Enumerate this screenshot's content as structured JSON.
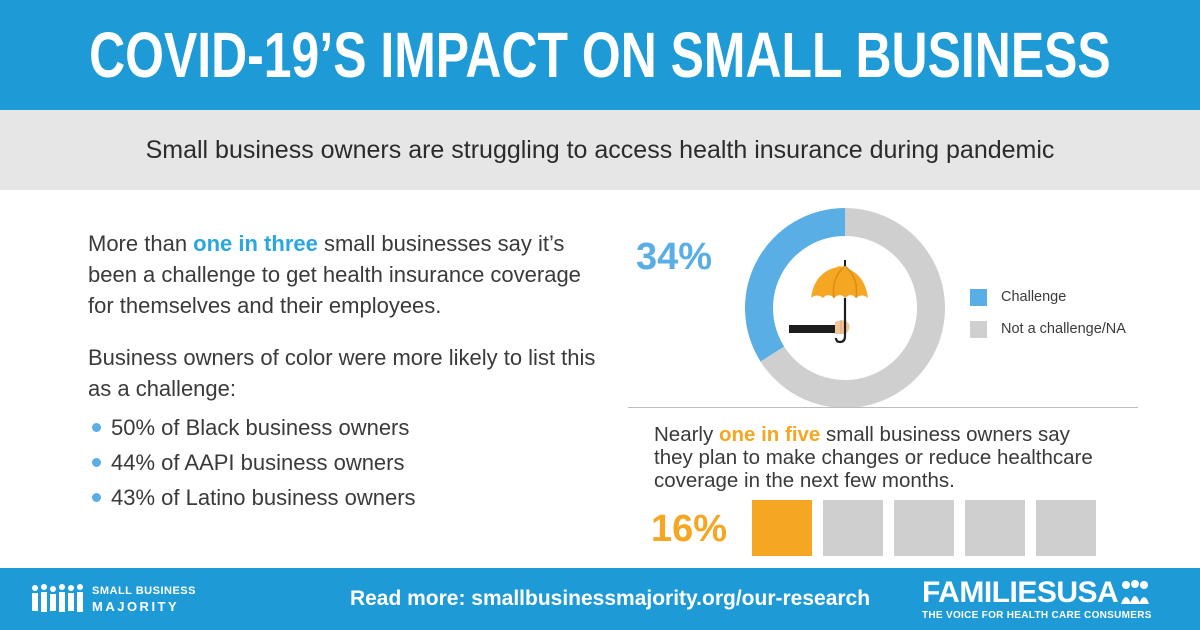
{
  "header": {
    "title": "COVID-19’S IMPACT ON SMALL BUSINESS"
  },
  "subheader": {
    "text": "Small business owners are struggling to access health insurance during pandemic"
  },
  "left": {
    "para1": {
      "pre": "More than ",
      "highlight": "one in three",
      "post": " small businesses say it’s been a challenge to get health insurance coverage for themselves and their employees."
    },
    "para2": "Business owners of color were more likely to list this as a challenge:",
    "bullets": [
      "50% of Black business owners",
      "44% of AAPI business owners",
      "43% of Latino business owners"
    ]
  },
  "right": {
    "para": {
      "pre": "Nearly ",
      "highlight": "one in five",
      "post": " small business owners say they plan to make changes or reduce healthcare coverage in the next few months."
    }
  },
  "colors": {
    "brand_blue": "#1e9bd7",
    "challenge": "#5aaee6",
    "not_challenge": "#cfcfcf",
    "highlight_orange": "#f5a623",
    "icon": "umbrella-hand-icon"
  },
  "chart_data": [
    {
      "type": "pie",
      "style": "donut",
      "label": "34%",
      "series": [
        {
          "name": "Challenge",
          "value": 34,
          "color": "#5aaee6"
        },
        {
          "name": "Not a challenge/NA",
          "value": 66,
          "color": "#cfcfcf"
        }
      ],
      "legend": "right"
    },
    {
      "type": "bar",
      "style": "unit-blocks",
      "label": "16%",
      "total_blocks": 5,
      "highlighted_blocks": 1,
      "value_percent": 16,
      "highlight_color": "#f5a623",
      "rest_color": "#cfcfcf"
    }
  ],
  "footer": {
    "link": "Read more: smallbusinessmajority.org/our-research",
    "logo_left": {
      "line1": "SMALL BUSINESS",
      "line2": "MAJORITY",
      "icon": "people-group-icon"
    },
    "logo_right": {
      "name": "FAMILIESUSA",
      "tagline": "THE VOICE FOR HEALTH CARE CONSUMERS",
      "icon": "family-icon"
    }
  }
}
